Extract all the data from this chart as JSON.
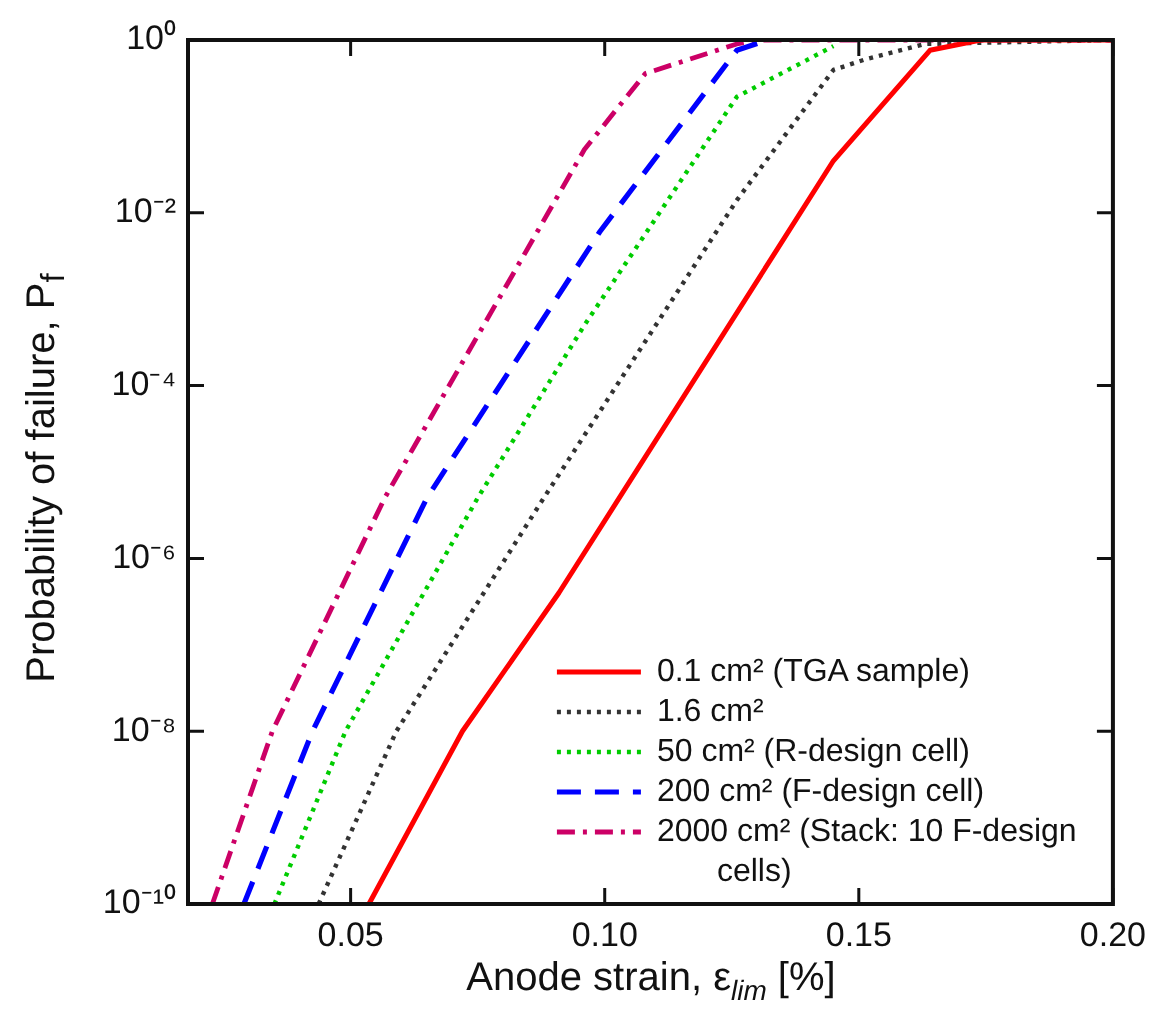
{
  "chart_data": {
    "type": "line",
    "xlabel": "Anode strain, ε$_{lim}$ [%]",
    "ylabel": "Probability of failure, P$_{f}$",
    "log": "y",
    "grid": false,
    "legend": "bottom right",
    "marker": "none",
    "xlim": [
      0.018,
      0.2
    ],
    "xticks": [
      {
        "value": 0.05,
        "label": "0.05"
      },
      {
        "value": 0.1,
        "label": "0.10"
      },
      {
        "value": 0.15,
        "label": "0.15"
      },
      {
        "value": 0.2,
        "label": "0.20"
      }
    ],
    "ylim": [
      1e-10,
      1
    ],
    "yticks": [
      {
        "value": 1e-10,
        "label": "10⁻¹⁰"
      },
      {
        "value": 1e-08,
        "label": "10⁻⁸"
      },
      {
        "value": 1e-06,
        "label": "10⁻⁶"
      },
      {
        "value": 0.0001,
        "label": "10⁻⁴"
      },
      {
        "value": 0.01,
        "label": "10⁻²"
      },
      {
        "value": 1,
        "label": "10⁰"
      }
    ],
    "series": [
      {
        "name": "0.1 cm² (TGA sample)",
        "color": "#ff0000",
        "line_style": "solid",
        "x": [
          0.0536,
          0.072,
          0.091,
          0.145,
          0.164,
          0.174,
          0.2
        ],
        "values": [
          1e-10,
          1e-08,
          4e-07,
          0.04,
          0.76,
          1,
          1
        ]
      },
      {
        "name": "1.6 cm²",
        "color": "#333333",
        "line_style": "dotted",
        "x": [
          0.0437,
          0.059,
          0.088,
          0.126,
          0.145,
          0.151,
          0.163,
          0.2
        ],
        "values": [
          1e-10,
          1e-08,
          5e-06,
          0.014,
          0.45,
          0.59,
          0.9,
          1
        ]
      },
      {
        "name": "50 cm² (R-design cell)",
        "color": "#00cc00",
        "line_style": "dotted",
        "x": [
          0.035,
          0.049,
          0.075,
          0.096,
          0.126,
          0.145
        ],
        "values": [
          1e-10,
          1e-08,
          5e-06,
          0.0005,
          0.22,
          0.85
        ]
      },
      {
        "name": "200 cm² (F-design cell)",
        "color": "#0000ff",
        "line_style": "dashed",
        "x": [
          0.029,
          0.0425,
          0.065,
          0.099,
          0.126,
          0.132
        ],
        "values": [
          1e-10,
          1e-08,
          5e-06,
          0.006,
          0.76,
          1
        ]
      },
      {
        "name": "2000 cm² (Stack: 10 F-design cells)",
        "color": "#cc0066",
        "line_style": "dashdot",
        "x": [
          0.0228,
          0.0346,
          0.0567,
          0.096,
          0.108,
          0.126,
          0.13,
          0.2
        ],
        "values": [
          1e-10,
          1e-08,
          5e-06,
          0.054,
          0.41,
          0.9,
          1,
          1
        ]
      }
    ]
  }
}
